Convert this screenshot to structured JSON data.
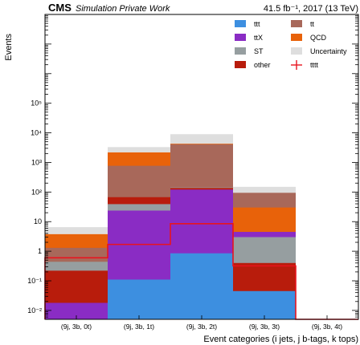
{
  "header": {
    "experiment": "CMS",
    "subtitle": "Simulation Private Work",
    "luminosity": "41.5 fb⁻¹, 2017 (13 TeV)"
  },
  "chart_data": {
    "type": "bar",
    "stacked": true,
    "y_scale": "log",
    "ylim": [
      0.005,
      100000000
    ],
    "ylabel": "Events",
    "xlabel": "Event categories (i jets, j b-tags, k tops)",
    "categories": [
      "(9j, 3b, 0t)",
      "(9j, 3b, 1t)",
      "(9j, 3b, 2t)",
      "(9j, 3b, 3t)",
      "(9j, 3b, 4t)"
    ],
    "y_tick_labels": [
      "10⁻²",
      "10⁻¹",
      "1",
      "10",
      "10²",
      "10³",
      "10⁴",
      "10⁵"
    ],
    "y_tick_values": [
      0.01,
      0.1,
      1,
      10,
      100,
      1000,
      10000,
      100000
    ],
    "series": [
      {
        "name": "ttt",
        "color": "#3d8fe0",
        "values": [
          0.0,
          0.11,
          0.85,
          0.045,
          0.0
        ]
      },
      {
        "name": "ttX",
        "color": "#8a2cc4",
        "values": [
          0.018,
          23.6,
          121,
          4.5,
          0.0
        ]
      },
      {
        "name": "ST",
        "color": "#969ea0",
        "values": [
          0.44,
          39,
          143,
          3.0,
          0.0
        ]
      },
      {
        "name": "other",
        "color": "#b81c0c",
        "values": [
          0.22,
          67,
          137,
          0.4,
          0.0
        ]
      },
      {
        "name": "tt",
        "color": "#a8685a",
        "values": [
          1.3,
          770,
          4100,
          95,
          0.0
        ]
      },
      {
        "name": "QCD",
        "color": "#e8620a",
        "values": [
          3.8,
          2200,
          4300,
          30,
          0.0
        ]
      },
      {
        "name": "Uncertainty",
        "color": "#dedede",
        "values": [
          6.5,
          3300,
          9000,
          150,
          0.0
        ]
      },
      {
        "name": "tttt",
        "color": "#e8141e",
        "values": [
          0.6,
          1.7,
          8.5,
          0.32,
          0.0
        ]
      }
    ],
    "legend_position": "top-right"
  }
}
